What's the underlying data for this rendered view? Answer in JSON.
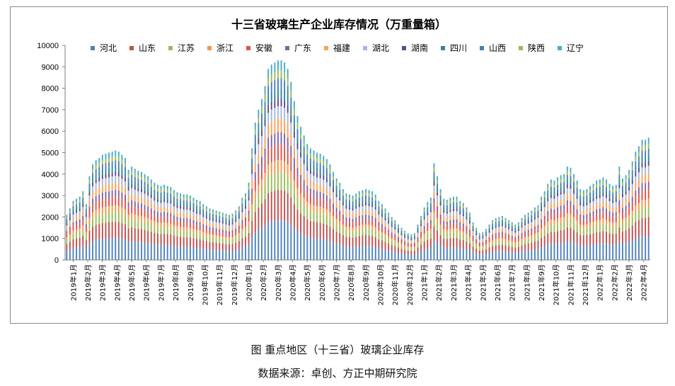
{
  "chart_data": {
    "type": "bar",
    "stacked": true,
    "title": "十三省玻璃生产企业库存情况（万重量箱）",
    "ylim": [
      0,
      10000
    ],
    "yticks": [
      0,
      1000,
      2000,
      3000,
      4000,
      5000,
      6000,
      7000,
      8000,
      9000,
      10000
    ],
    "grid": false,
    "legend_position": "top",
    "x_tick_labels": [
      "2019年1月",
      "2019年2月",
      "2019年3月",
      "2019年4月",
      "2019年5月",
      "2019年6月",
      "2019年7月",
      "2019年8月",
      "2019年9月",
      "2019年10月",
      "2019年11月",
      "2019年12月",
      "2020年1月",
      "2020年2月",
      "2020年3月",
      "2020年4月",
      "2020年5月",
      "2020年6月",
      "2020年7月",
      "2020年8月",
      "2020年9月",
      "2020年10月",
      "2020年11月",
      "2020年12月",
      "2021年1月",
      "2021年2月",
      "2021年3月",
      "2021年4月",
      "2021年5月",
      "2021年6月",
      "2021年7月",
      "2021年8月",
      "2021年9月",
      "2021年10月",
      "2021年11月",
      "2021年12月",
      "2022年1月",
      "2022年2月",
      "2022年3月",
      "2022年4月"
    ],
    "series": [
      {
        "name": "河北",
        "color": "#4F81BD"
      },
      {
        "name": "山东",
        "color": "#C0504D"
      },
      {
        "name": "江苏",
        "color": "#9BBB59"
      },
      {
        "name": "浙江",
        "color": "#F79646"
      },
      {
        "name": "安徽",
        "color": "#E0524A"
      },
      {
        "name": "广东",
        "color": "#8064A2"
      },
      {
        "name": "福建",
        "color": "#F9A25A"
      },
      {
        "name": "湖北",
        "color": "#A5B8DC"
      },
      {
        "name": "湖南",
        "color": "#5F4B8B"
      },
      {
        "name": "四川",
        "color": "#31859C"
      },
      {
        "name": "山西",
        "color": "#4A7EBB"
      },
      {
        "name": "陕西",
        "color": "#9BBB59"
      },
      {
        "name": "辽宁",
        "color": "#4BACC6"
      }
    ],
    "series_shares": [
      0.2,
      0.15,
      0.09,
      0.06,
      0.08,
      0.06,
      0.07,
      0.06,
      0.04,
      0.05,
      0.05,
      0.04,
      0.05
    ],
    "totals_weekly": [
      2100,
      2400,
      2750,
      2850,
      2950,
      3200,
      2600,
      3900,
      4450,
      4650,
      4750,
      4900,
      4950,
      5000,
      5050,
      5100,
      5050,
      4900,
      4750,
      4200,
      4350,
      4250,
      4150,
      4100,
      4000,
      3900,
      3750,
      3600,
      3500,
      3450,
      3500,
      3450,
      3400,
      3250,
      3150,
      3100,
      3050,
      3050,
      3000,
      2900,
      2800,
      2750,
      2600,
      2500,
      2400,
      2350,
      2300,
      2250,
      2200,
      2150,
      2100,
      2150,
      2300,
      2500,
      2900,
      3100,
      3600,
      5200,
      6400,
      7000,
      7500,
      8100,
      8900,
      9100,
      9200,
      9300,
      9300,
      9200,
      8900,
      8300,
      7400,
      6700,
      6200,
      5800,
      5400,
      5200,
      5100,
      5000,
      4950,
      4850,
      4700,
      4450,
      4100,
      3800,
      3600,
      3300,
      3100,
      3050,
      3000,
      3100,
      3200,
      3250,
      3300,
      3250,
      3200,
      3050,
      2750,
      2600,
      2400,
      2200,
      2000,
      1850,
      1650,
      1500,
      1350,
      1250,
      1200,
      1250,
      1650,
      2050,
      2450,
      2700,
      2900,
      4500,
      3900,
      3300,
      2850,
      2800,
      2900,
      2950,
      2950,
      2750,
      2650,
      2450,
      2200,
      1750,
      1500,
      1250,
      1300,
      1450,
      1650,
      1850,
      1950,
      2000,
      2050,
      1950,
      1850,
      1750,
      1650,
      1750,
      1950,
      2100,
      2200,
      2300,
      2450,
      2550,
      2950,
      3200,
      3550,
      3750,
      3700,
      3850,
      3950,
      4000,
      4350,
      4300,
      4000,
      3700,
      3300,
      3250,
      3300,
      3450,
      3550,
      3700,
      3750,
      3850,
      3750,
      3550,
      3450,
      3500,
      4350,
      3800,
      3950,
      4200,
      4600,
      5050,
      5300,
      5600,
      5600,
      5700
    ]
  },
  "caption": "图    重点地区（十三省）玻璃企业库存",
  "source": "数据来源：卓创、方正中期研究院"
}
